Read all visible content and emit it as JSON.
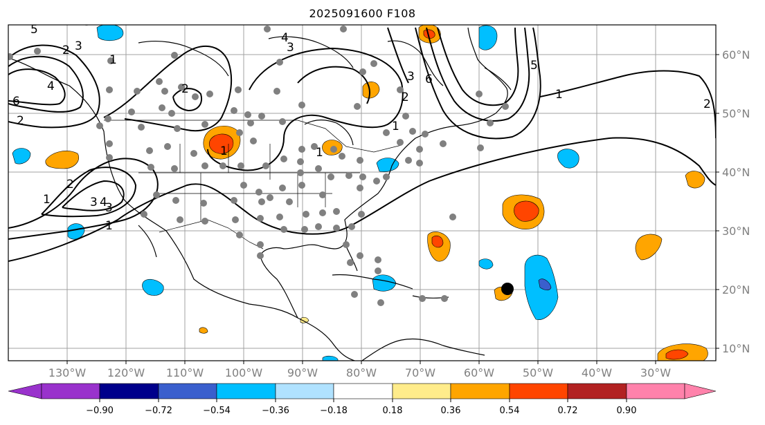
{
  "title": "2025091600 F108",
  "map": {
    "longitude_labels": [
      "130°W",
      "120°W",
      "110°W",
      "100°W",
      "90°W",
      "80°W",
      "70°W",
      "60°W",
      "50°W",
      "40°W",
      "30°W"
    ],
    "latitude_labels": [
      "60°N",
      "50°N",
      "40°N",
      "30°N",
      "20°N",
      "10°N"
    ],
    "contour_labels": [
      "5",
      "2",
      "4",
      "3",
      "1",
      "6",
      "2",
      "1",
      "2",
      "3",
      "4",
      "3",
      "1",
      "2",
      "3",
      "1",
      "4",
      "3",
      "6",
      "5",
      "1",
      "2",
      "1",
      "2",
      "1"
    ]
  },
  "colorbar": {
    "tick_labels": [
      "−0.90",
      "−0.72",
      "−0.54",
      "−0.36",
      "−0.18",
      "0.18",
      "0.36",
      "0.54",
      "0.72",
      "0.90"
    ],
    "colors": [
      "#9932cc",
      "#00008b",
      "#3a5fcd",
      "#00bfff",
      "#b0e2ff",
      "#ffffff",
      "#ffec8b",
      "#ffa500",
      "#ff4500",
      "#b22222",
      "#ff82ab"
    ]
  }
}
